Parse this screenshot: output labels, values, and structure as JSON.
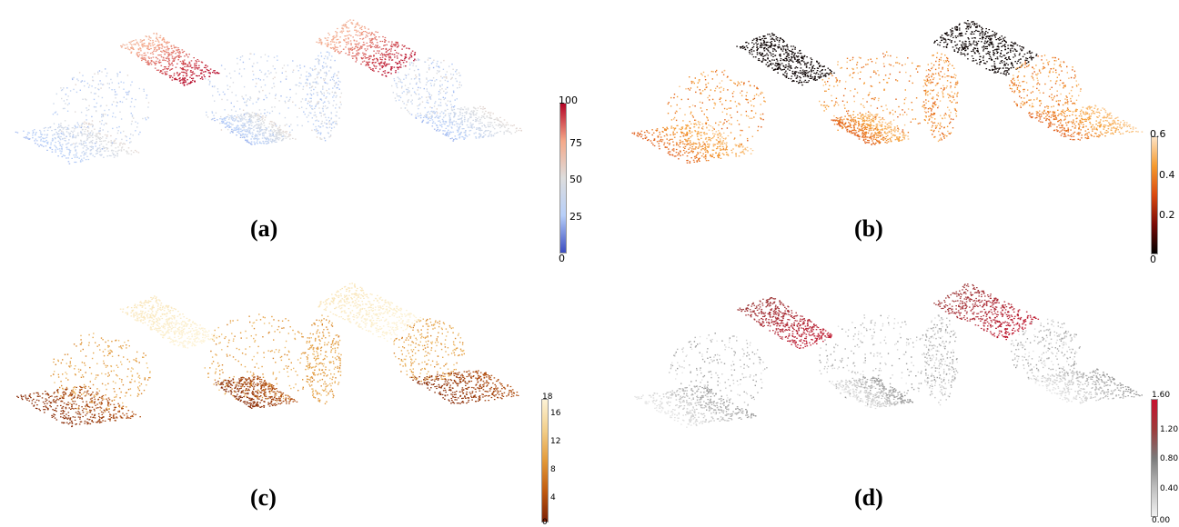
{
  "panels": [
    {
      "caption": "(a)",
      "colormap": "coolwarm",
      "colorbar": {
        "max": "100",
        "ticks": [
          "75",
          "50",
          "25"
        ],
        "min": "0"
      }
    },
    {
      "caption": "(b)",
      "colormap": "blackbody",
      "colorbar": {
        "max": "0.6",
        "ticks": [
          "0.4",
          "0.2"
        ],
        "min": "0"
      }
    },
    {
      "caption": "(c)",
      "colormap": "ylorbr",
      "colorbar": {
        "max": "18",
        "ticks": [
          "16",
          "12",
          "8",
          "4"
        ],
        "min": "0"
      }
    },
    {
      "caption": "(d)",
      "colormap": "greyred",
      "colorbar": {
        "max": "1.60",
        "ticks": [
          "1.20",
          "0.80",
          "0.40"
        ],
        "min": "0.00"
      }
    }
  ],
  "colors": {
    "coolwarm": [
      "#3b4cc0",
      "#b7cff9",
      "#dddddd",
      "#f5a889",
      "#b40426"
    ],
    "blackbody": [
      "#000000",
      "#7a0a05",
      "#d9480f",
      "#f59a2e",
      "#fde3c5"
    ],
    "ylorbr": [
      "#7a1f05",
      "#c05a10",
      "#e39a3a",
      "#f2cf8a",
      "#fdf3d6"
    ],
    "greyred": [
      "#f2f2f2",
      "#bdbdbd",
      "#7a7a7a",
      "#9e3a3a",
      "#c8102e"
    ]
  }
}
